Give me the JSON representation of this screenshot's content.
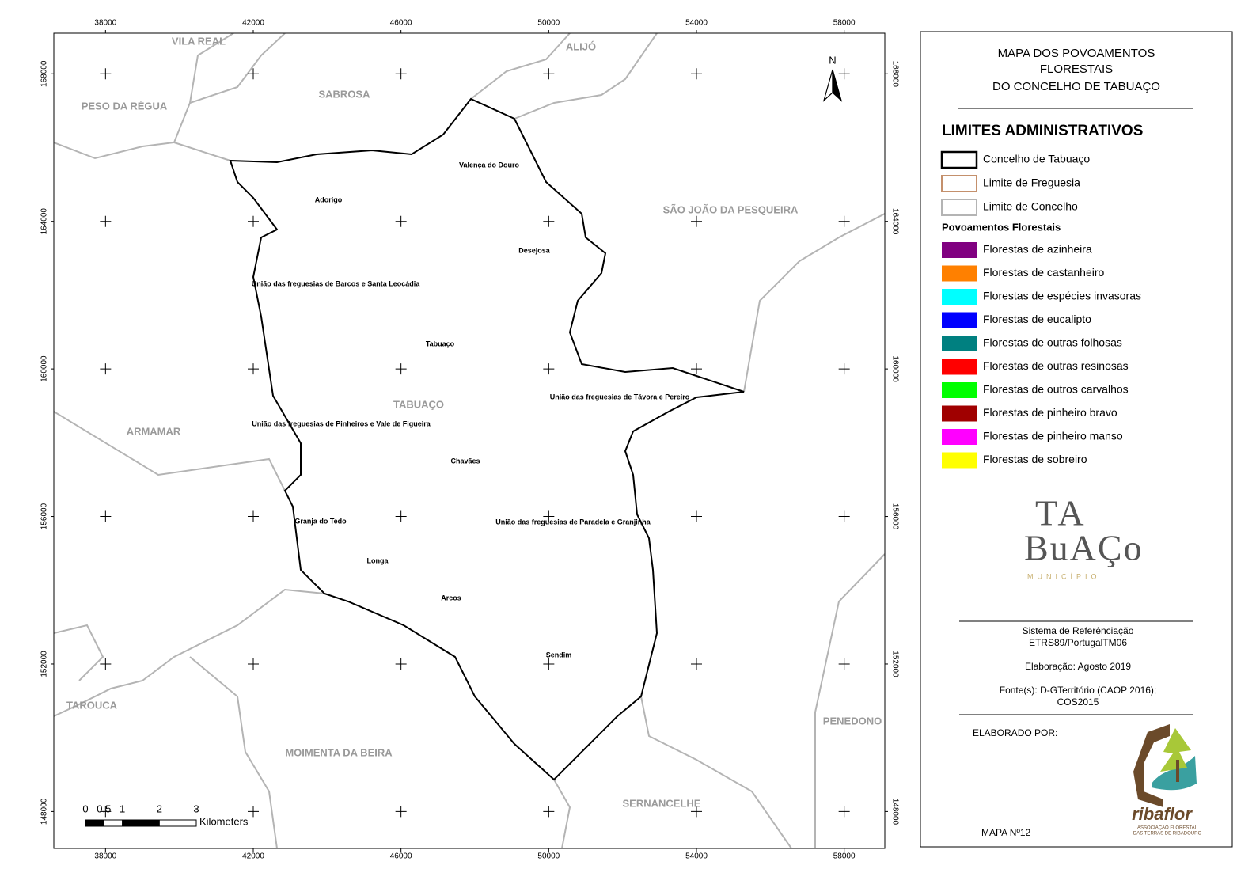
{
  "map": {
    "north": "N",
    "grid": {
      "xlim": [
        36600,
        59100
      ],
      "ylim": [
        147000,
        169100
      ],
      "xticks": [
        38000,
        42000,
        46000,
        50000,
        54000,
        58000
      ],
      "yticks": [
        148000,
        152000,
        156000,
        160000,
        164000,
        168000
      ]
    },
    "neighbors": [
      "VILA REAL",
      "ALIJÓ",
      "SABROSA",
      "PESO DA RÉGUA",
      "SÃO JOÃO DA PESQUEIRA",
      "ARMAMAR",
      "TAROUCA",
      "MOIMENTA DA BEIRA",
      "SERNANCELHE",
      "PENEDONO",
      "TABUAÇO"
    ],
    "parishes": [
      "Valença do Douro",
      "Adorigo",
      "Desejosa",
      "União das freguesias de Barcos e Santa Leocádia",
      "Tabuaço",
      "União das freguesias de Távora e Pereiro",
      "União das freguesias de Pinheiros e Vale de Figueira",
      "Chavães",
      "Granja do Tedo",
      "União das freguesias de Paradela e Granjinha",
      "Longa",
      "Arcos",
      "Sendim"
    ],
    "scale_bar": {
      "ticks": [
        0,
        0.5,
        1,
        2,
        3
      ],
      "unit": "Kilometers"
    }
  },
  "legend": {
    "title": [
      "MAPA DOS POVOAMENTOS",
      "FLORESTAIS",
      "DO CONCELHO DE TABUAÇO"
    ],
    "admin_title": "LIMITES ADMINISTRATIVOS",
    "admin": [
      {
        "label": "Concelho de Tabuaço",
        "color": "#000000"
      },
      {
        "label": "Limite de Freguesia",
        "color": "#c4906c"
      },
      {
        "label": "Limite de Concelho",
        "color": "#b4b4b4"
      }
    ],
    "forest_title": "Povoamentos Florestais",
    "forest": [
      {
        "label": "Florestas de azinheira",
        "color": "#800080"
      },
      {
        "label": "Florestas de castanheiro",
        "color": "#ff8000"
      },
      {
        "label": "Florestas de espécies invasoras",
        "color": "#00ffff"
      },
      {
        "label": "Florestas de eucalipto",
        "color": "#0000ff"
      },
      {
        "label": "Florestas de outras folhosas",
        "color": "#008080"
      },
      {
        "label": "Florestas de outras resinosas",
        "color": "#ff0000"
      },
      {
        "label": "Florestas de outros carvalhos",
        "color": "#00ff00"
      },
      {
        "label": "Florestas de pinheiro bravo",
        "color": "#a00000"
      },
      {
        "label": "Florestas de pinheiro manso",
        "color": "#ff00ff"
      },
      {
        "label": "Florestas de sobreiro",
        "color": "#ffff00"
      }
    ]
  },
  "logo": {
    "lines": [
      "TA",
      "BuAÇo"
    ],
    "subtitle": "MUNICÍPIO"
  },
  "info": {
    "reference": [
      "Sistema de Referênciação",
      "ETRS89/PortugalTM06"
    ],
    "date": "Elaboração: Agosto 2019",
    "sources": [
      "Fonte(s): D-GTerritório (CAOP 2016);",
      "COS2015"
    ],
    "made_by": "ELABORADO POR:",
    "org": {
      "name": "ribaflor",
      "lines": [
        "ASSOCIAÇÃO FLORESTAL",
        "DAS TERRAS DE RIBADOURO"
      ]
    },
    "map_number": "MAPA Nº12"
  }
}
